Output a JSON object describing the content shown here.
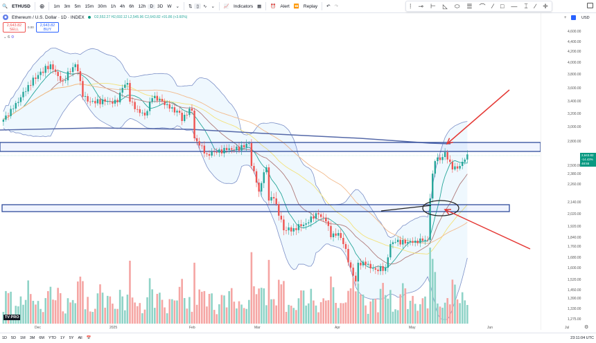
{
  "toolbar": {
    "symbol": "ETHUSD",
    "intervals": [
      "1m",
      "3m",
      "5m",
      "15m",
      "30m",
      "1h",
      "4h",
      "6h",
      "12h",
      "D",
      "3D",
      "W"
    ],
    "active_interval": "D",
    "indicators": "Indicators",
    "alert": "Alert",
    "replay": "Replay"
  },
  "drawing_tools": [
    "cursor-icon",
    "horizontal-ray-icon",
    "fork-icon",
    "triangle-icon",
    "ellipse-icon",
    "fib-icon",
    "curve-icon",
    "brush-icon",
    "rectangle-icon",
    "horizontal-line-icon",
    "price-range-icon",
    "trend-line-icon",
    "crosshair-icon"
  ],
  "legend": {
    "title": "Ethereum / U.S. Dollar · 1D · INDEX",
    "ohlc": "O2,552.27 H2,692.12 L2,545.96 C2,643.82 +91.86 (+3.60%)",
    "sell_price": "2,643.82",
    "sell_label": "SELL",
    "spread": "0.00",
    "buy_price": "2,643.82",
    "buy_label": "BUY",
    "indicators_count": "6"
  },
  "price_axis": {
    "currency": "USD",
    "labels": [
      "4,600.00",
      "4,400.00",
      "4,200.00",
      "4,000.00",
      "3,800.00",
      "3,600.00",
      "3,400.00",
      "3,200.00",
      "3,000.00",
      "2,800.00",
      "2,500.00",
      "2,380.00",
      "2,260.00",
      "2,140.00",
      "2,020.00",
      "1,920.00",
      "1,840.00",
      "1,760.00",
      "1,680.00",
      "1,600.00",
      "1,520.00",
      "1,450.00",
      "1,390.00",
      "1,330.00",
      "1,275.00"
    ],
    "price_tag": {
      "price": "2,643.82",
      "line2": "-14.43%",
      "line3": "48:55",
      "color": "#089981"
    }
  },
  "time_axis": [
    "Dec",
    "2025",
    "Feb",
    "Mar",
    "Apr",
    "May",
    "Jun",
    "Jul"
  ],
  "bottom": {
    "ranges": [
      "1D",
      "5D",
      "1M",
      "3M",
      "6M",
      "YTD",
      "1Y",
      "5Y",
      "All"
    ],
    "clock": "23:11:04 UTC"
  },
  "colors": {
    "up": "#26a69a",
    "down": "#ef5350",
    "vol_up": "#8fd3c7",
    "vol_down": "#f5a5a3",
    "zone": "#2e4a9a",
    "annotation": "#e53935"
  },
  "price_path": [
    [
      "2024-11-17",
      3115
    ],
    [
      "2024-11-21",
      3289
    ],
    [
      "2024-11-27",
      3650
    ],
    [
      "2024-12-06",
      3976
    ],
    [
      "2024-12-09",
      3780
    ],
    [
      "2024-12-11",
      3710
    ],
    [
      "2024-12-16",
      3976
    ],
    [
      "2024-12-17",
      3859
    ],
    [
      "2024-12-19",
      3474
    ],
    [
      "2024-12-22",
      3400
    ],
    [
      "2024-12-28",
      3400
    ],
    [
      "2025-01-02",
      3389
    ],
    [
      "2025-01-04",
      3610
    ],
    [
      "2025-01-06",
      3680
    ],
    [
      "2025-01-07",
      3400
    ],
    [
      "2025-01-10",
      3278
    ],
    [
      "2025-01-13",
      3179
    ],
    [
      "2025-01-16",
      3453
    ],
    [
      "2025-01-19",
      3442
    ],
    [
      "2025-01-23",
      3289
    ],
    [
      "2025-01-27",
      3222
    ],
    [
      "2025-01-28",
      3095
    ],
    [
      "2025-01-31",
      3289
    ],
    [
      "2025-02-01",
      3256
    ],
    [
      "2025-02-02",
      2848
    ],
    [
      "2025-02-07",
      2646
    ],
    [
      "2025-02-10",
      2671
    ],
    [
      "2025-02-15",
      2697
    ],
    [
      "2025-02-22",
      2731
    ],
    [
      "2025-02-24",
      2783
    ],
    [
      "2025-02-25",
      2500
    ],
    [
      "2025-02-28",
      2214
    ],
    [
      "2025-03-03",
      2480
    ],
    [
      "2025-03-04",
      2154
    ],
    [
      "2025-03-06",
      2168
    ],
    [
      "2025-03-10",
      1895
    ],
    [
      "2025-03-14",
      1910
    ],
    [
      "2025-03-19",
      1948
    ],
    [
      "2025-03-21",
      2003
    ],
    [
      "2025-03-24",
      2020
    ],
    [
      "2025-03-27",
      1964
    ],
    [
      "2025-03-29",
      1845
    ],
    [
      "2025-04-01",
      1875
    ],
    [
      "2025-04-03",
      1785
    ],
    [
      "2025-04-06",
      1605
    ],
    [
      "2025-04-08",
      1511
    ],
    [
      "2025-04-09",
      1643
    ],
    [
      "2025-04-12",
      1627
    ],
    [
      "2025-04-16",
      1591
    ],
    [
      "2025-04-20",
      1605
    ],
    [
      "2025-04-22",
      1785
    ],
    [
      "2025-04-24",
      1803
    ],
    [
      "2025-04-29",
      1803
    ],
    [
      "2025-05-02",
      1815
    ],
    [
      "2025-05-05",
      1815
    ],
    [
      "2025-05-07",
      1821
    ],
    [
      "2025-05-08",
      2168
    ],
    [
      "2025-05-10",
      2560
    ],
    [
      "2025-05-13",
      2611
    ],
    [
      "2025-05-14",
      2671
    ],
    [
      "2025-05-17",
      2450
    ],
    [
      "2025-05-20",
      2500
    ],
    [
      "2025-05-23",
      2643.82
    ]
  ]
}
